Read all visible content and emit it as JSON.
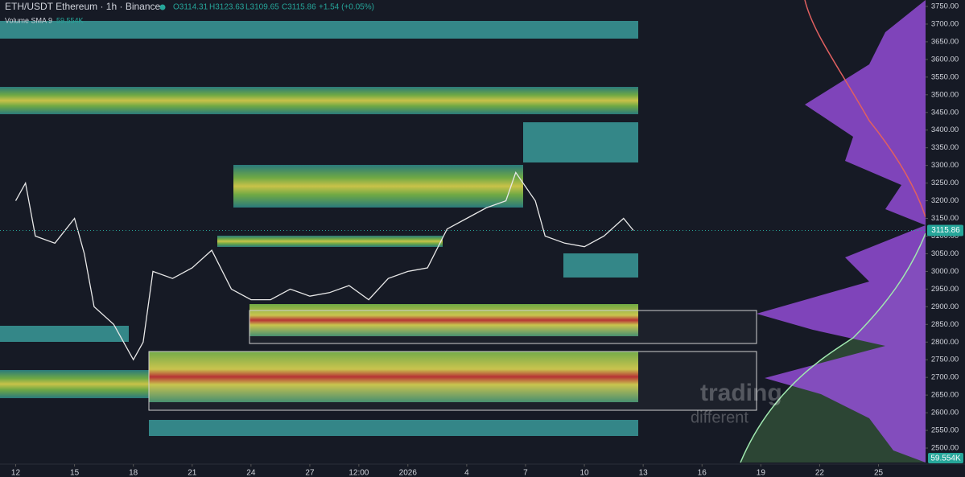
{
  "chart_data": {
    "type": "line",
    "title": "ETH/USDT Ethereum · 1h · Binance",
    "legend_items": [
      "O3114.31",
      "H3123.63",
      "L3109.65",
      "C3115.86",
      "+1.54 (+0.05%)"
    ],
    "indicator": "Volume SMA 9",
    "indicator_value": "59.554K",
    "watermark": [
      "trading",
      "different"
    ],
    "last_price": 3115.86,
    "x": [
      0,
      0.5,
      1,
      2,
      3,
      3.5,
      4,
      5,
      6,
      6.5,
      7,
      8,
      9,
      10,
      11,
      12,
      13,
      14,
      15,
      16,
      17,
      18,
      19,
      20,
      21,
      22,
      23,
      24,
      25,
      25.5,
      26.5,
      27,
      28,
      29,
      30,
      31,
      31.5
    ],
    "series": [
      {
        "name": "ETH/USDT",
        "color": "#e8e8e8",
        "values": [
          3200,
          3250,
          3100,
          3080,
          3150,
          3050,
          2900,
          2850,
          2750,
          2800,
          3000,
          2980,
          3010,
          3060,
          2950,
          2920,
          2920,
          2950,
          2930,
          2940,
          2960,
          2920,
          2980,
          3000,
          3010,
          3120,
          3150,
          3180,
          3200,
          3280,
          3200,
          3100,
          3080,
          3070,
          3100,
          3150,
          3116
        ]
      }
    ],
    "xlim": [
      -0.8,
      46.4
    ],
    "xticks": [
      {
        "value": 0,
        "label": "12"
      },
      {
        "value": 3,
        "label": "15"
      },
      {
        "value": 6,
        "label": "18"
      },
      {
        "value": 9,
        "label": "21"
      },
      {
        "value": 12,
        "label": "24"
      },
      {
        "value": 15,
        "label": "27"
      },
      {
        "value": 17.5,
        "label": "12:00"
      },
      {
        "value": 20,
        "label": "2026"
      },
      {
        "value": 23,
        "label": "4"
      },
      {
        "value": 26,
        "label": "7"
      },
      {
        "value": 29,
        "label": "10"
      },
      {
        "value": 32,
        "label": "13"
      },
      {
        "value": 35,
        "label": "16"
      },
      {
        "value": 38,
        "label": "19"
      },
      {
        "value": 41,
        "label": "22"
      },
      {
        "value": 44,
        "label": "25"
      }
    ],
    "ylim": [
      2460,
      3760
    ],
    "yticks": [
      {
        "value": 3750,
        "label": "3750.00"
      },
      {
        "value": 3700,
        "label": "3700.00"
      },
      {
        "value": 3650,
        "label": "3650.00"
      },
      {
        "value": 3600,
        "label": "3600.00"
      },
      {
        "value": 3550,
        "label": "3550.00"
      },
      {
        "value": 3500,
        "label": "3500.00"
      },
      {
        "value": 3450,
        "label": "3450.00"
      },
      {
        "value": 3400,
        "label": "3400.00"
      },
      {
        "value": 3350,
        "label": "3350.00"
      },
      {
        "value": 3300,
        "label": "3300.00"
      },
      {
        "value": 3250,
        "label": "3250.00"
      },
      {
        "value": 3200,
        "label": "3200.00"
      },
      {
        "value": 3150,
        "label": "3150.00"
      },
      {
        "value": 3100,
        "label": "3100.00"
      },
      {
        "value": 3050,
        "label": "3050.00"
      },
      {
        "value": 3000,
        "label": "3000.00"
      },
      {
        "value": 2950,
        "label": "2950.00"
      },
      {
        "value": 2900,
        "label": "2900.00"
      },
      {
        "value": 2850,
        "label": "2850.00"
      },
      {
        "value": 2800,
        "label": "2800.00"
      },
      {
        "value": 2750,
        "label": "2750.00"
      },
      {
        "value": 2700,
        "label": "2700.00"
      },
      {
        "value": 2650,
        "label": "2650.00"
      },
      {
        "value": 2600,
        "label": "2600.00"
      },
      {
        "value": 2550,
        "label": "2550.00"
      },
      {
        "value": 2500,
        "label": "2500.00"
      }
    ]
  }
}
